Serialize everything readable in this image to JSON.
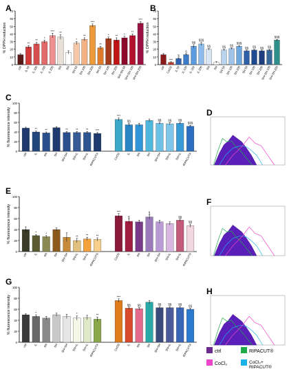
{
  "colors": {
    "ctrl": "#6a2a8f",
    "ripacut": "#1faa4a",
    "cocl2": "#ee44cc",
    "cocl2_ripacut": "#1ab2e8"
  },
  "legend": [
    {
      "key": "ctrl",
      "label": "ctrl"
    },
    {
      "key": "ripacut",
      "label": "RIPACUT®"
    },
    {
      "key": "cocl2",
      "label": "CoCl₂"
    },
    {
      "key": "cocl2_ripacut",
      "label": "CoCl₂+ RIPACUT®"
    }
  ],
  "chart_data": [
    {
      "panel": "A",
      "type": "bar",
      "ylabel": "% DPPH reduction",
      "ylim": [
        0,
        70
      ],
      "yticks": [
        0,
        10,
        20,
        30,
        40,
        50,
        60,
        70
      ],
      "categories": [
        "ctrl",
        "IL 50",
        "IL 100",
        "IL 150",
        "IL 200",
        "SN",
        "SH",
        "SN 50",
        "SN 100",
        "SN 200",
        "SH 50",
        "SH 100",
        "SH 200",
        "SH+SN 50",
        "SH+SN 100",
        "SH+SN 200"
      ],
      "values": [
        13,
        23,
        27,
        30,
        38,
        36,
        16,
        28,
        33,
        51,
        22,
        34,
        32,
        35,
        38,
        54
      ],
      "errors": [
        1.5,
        2,
        2,
        2,
        3,
        3,
        2,
        2,
        2,
        2,
        2,
        2,
        3,
        2,
        2,
        2
      ],
      "labels": [
        "",
        "**",
        "**",
        "*",
        "***",
        "**",
        "",
        "*",
        "**",
        "***",
        "**",
        "*",
        "**",
        "*",
        "**",
        "***"
      ],
      "colors": [
        "#5a1a1a",
        "#d23a3a",
        "#d64f4f",
        "#e36a6a",
        "#f08f8f",
        "#e9e0d8",
        "#ffffff",
        "#f5c9a8",
        "#f4b183",
        "#ec9a3a",
        "#e07b2a",
        "#a33a1a",
        "#c01515",
        "#8b0a2a",
        "#b5112e",
        "#9a1040"
      ]
    },
    {
      "panel": "B",
      "type": "bar",
      "ylabel": "% DPPH reduction",
      "ylim": [
        0,
        70
      ],
      "yticks": [
        0,
        10,
        20,
        30,
        40,
        50,
        60,
        70
      ],
      "categories": [
        "ctrl",
        "CoCl2",
        "IL 50",
        "IL 100",
        "IL 150",
        "IL 200",
        "SN",
        "SH",
        "SN 50",
        "SN 100",
        "SN 200",
        "SH 50",
        "SH 100",
        "SH 200",
        "SH+SN 100",
        "SH+SN 200"
      ],
      "values": [
        13,
        3,
        8,
        13,
        24,
        27,
        20,
        3,
        19,
        21,
        24,
        18,
        19,
        18,
        19,
        32
      ],
      "errors": [
        1.5,
        0.8,
        1,
        1,
        2,
        2,
        1,
        0.8,
        1,
        1,
        1,
        1,
        1,
        1,
        1,
        1
      ],
      "labels": [
        "",
        "***",
        "§",
        "§",
        "§§",
        "§§§",
        "§§",
        "",
        "§§",
        "§§",
        "§§§",
        "§§",
        "§§",
        "§§",
        "§§",
        "§§§"
      ],
      "colors": [
        "#8b1a1a",
        "#c0392b",
        "#2f62b0",
        "#3c7cc9",
        "#5c9be0",
        "#8dbbec",
        "#d7e5f4",
        "#ffffff",
        "#b8d3ee",
        "#9ec4ea",
        "#6fa8df",
        "#2f5fa8",
        "#1f4a90",
        "#1d3f80",
        "#38689a",
        "#2c8f8a"
      ]
    },
    {
      "panel": "C",
      "type": "bar",
      "ylabel": "% fluorescence intensity",
      "ylim": [
        0,
        100
      ],
      "yticks": [
        0,
        20,
        40,
        60,
        80,
        100
      ],
      "groups": [
        {
          "categories": [
            "ctrl",
            "IL",
            "SN",
            "SH",
            "SN+SH",
            "SN+IL",
            "SH+IL",
            "RIPACUT®"
          ],
          "values": [
            48,
            40,
            38,
            49,
            39,
            39,
            39,
            37
          ],
          "errors": [
            2,
            2,
            2,
            2,
            2,
            2,
            2,
            2
          ],
          "labels": [
            "",
            "**",
            "**",
            "",
            "**",
            "**",
            "**",
            "***"
          ],
          "colors": [
            "#1e3a6e",
            "#23457e",
            "#2a4f8a",
            "#1e3a6e",
            "#2a4f8a",
            "#355a96",
            "#2f5590",
            "#1e3a6e"
          ]
        },
        {
          "categories": [
            "CoCl2",
            "IL",
            "SN",
            "SH",
            "SN+SH",
            "SN+IL",
            "SH+IL",
            "RIPACUT®"
          ],
          "values": [
            66,
            55,
            55,
            64,
            58,
            57,
            58,
            52
          ],
          "errors": [
            3,
            3,
            3,
            3,
            2,
            2,
            2,
            2
          ],
          "labels": [
            "***",
            "§§",
            "",
            "",
            "§§",
            "§§",
            "§§",
            "§§§"
          ],
          "colors": [
            "#3aa8c8",
            "#2b86c8",
            "#2f95d6",
            "#4db8dc",
            "#6dc0e6",
            "#7ec6ea",
            "#3a9ad8",
            "#2b70c0"
          ]
        }
      ]
    },
    {
      "panel": "E",
      "type": "bar",
      "ylabel": "% fluorescence intensity",
      "ylim": [
        0,
        100
      ],
      "yticks": [
        0,
        20,
        40,
        60,
        80,
        100
      ],
      "groups": [
        {
          "categories": [
            "ctrl",
            "IL",
            "SN",
            "SH",
            "SN+SH",
            "SN+IL",
            "SH+IL",
            "RIPACUT®"
          ],
          "values": [
            40,
            29,
            27,
            40,
            26,
            20,
            23,
            22
          ],
          "errors": [
            5,
            2,
            2,
            3,
            8,
            4,
            3,
            3
          ],
          "labels": [
            "",
            "*",
            "*",
            "",
            "",
            "**",
            "**",
            "**"
          ],
          "colors": [
            "#3a3a28",
            "#5b5b32",
            "#8a8a52",
            "#8b5a1c",
            "#c78a3a",
            "#e2c07f",
            "#f3a23c",
            "#f6cf8a"
          ]
        },
        {
          "categories": [
            "CoCl2",
            "IL",
            "SN",
            "SH",
            "SN+SH",
            "SN+IL",
            "SH+IL",
            "RIPACUT®"
          ],
          "values": [
            65,
            55,
            54,
            63,
            54,
            51,
            57,
            47
          ],
          "errors": [
            4,
            4,
            3,
            4,
            3,
            3,
            2,
            3
          ],
          "labels": [
            "***",
            "§",
            "",
            "§",
            "",
            "",
            "§§",
            "§§"
          ],
          "colors": [
            "#8b1a3a",
            "#a01d3f",
            "#7a3a8a",
            "#9a7ab8",
            "#b99ad4",
            "#d6b8e0",
            "#c25a7a",
            "#f2d6e0"
          ]
        }
      ]
    },
    {
      "panel": "G",
      "type": "bar",
      "ylabel": "% fluorescence intensity",
      "ylim": [
        0,
        100
      ],
      "yticks": [
        0,
        20,
        40,
        60,
        80,
        100
      ],
      "groups": [
        {
          "categories": [
            "ctrl",
            "IL",
            "SN",
            "SH",
            "SN+SH",
            "SN+IL",
            "SH+IL",
            "RIPACUT®"
          ],
          "values": [
            50,
            47,
            44,
            50,
            47,
            44,
            45,
            42
          ],
          "errors": [
            2,
            3,
            3,
            3,
            4,
            4,
            4,
            4
          ],
          "labels": [
            "",
            "*",
            "",
            "",
            "",
            "*",
            "",
            "**"
          ],
          "colors": [
            "#3a3a3a",
            "#6a6a6a",
            "#8a8a8a",
            "#c8c8c8",
            "#e6e6e6",
            "#f5f5e8",
            "#dfe8c8",
            "#8aa84a"
          ]
        },
        {
          "categories": [
            "CoCl2",
            "IL",
            "SN",
            "SH",
            "SN+SH",
            "SN+IL",
            "SH+IL",
            "RIPACUT®"
          ],
          "values": [
            76,
            62,
            61,
            73,
            63,
            63,
            63,
            60
          ],
          "errors": [
            3,
            2,
            2,
            3,
            2,
            2,
            2,
            2
          ],
          "labels": [
            "***",
            "§§",
            "§§",
            "",
            "§§",
            "§§",
            "§§",
            "§§"
          ],
          "colors": [
            "#e07b1a",
            "#d84a2a",
            "#e36a8a",
            "#2aa8a8",
            "#3a4a7a",
            "#4a5a9a",
            "#3a66b8",
            "#2a7ad0"
          ]
        }
      ]
    },
    {
      "panel": "D",
      "type": "histogram",
      "xlabel": "",
      "ylabel": ""
    },
    {
      "panel": "F",
      "type": "histogram",
      "xlabel": "",
      "ylabel": ""
    },
    {
      "panel": "H",
      "type": "histogram",
      "xlabel": "",
      "ylabel": ""
    }
  ]
}
